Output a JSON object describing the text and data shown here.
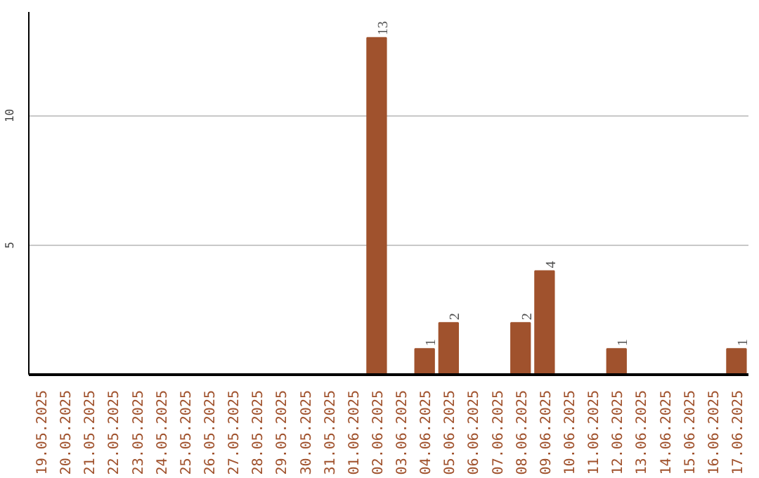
{
  "chart_data": {
    "type": "bar",
    "categories": [
      "19.05.2025",
      "20.05.2025",
      "21.05.2025",
      "22.05.2025",
      "23.05.2025",
      "24.05.2025",
      "25.05.2025",
      "26.05.2025",
      "27.05.2025",
      "28.05.2025",
      "29.05.2025",
      "30.05.2025",
      "31.05.2025",
      "01.06.2025",
      "02.06.2025",
      "03.06.2025",
      "04.06.2025",
      "05.06.2025",
      "06.06.2025",
      "07.06.2025",
      "08.06.2025",
      "09.06.2025",
      "10.06.2025",
      "11.06.2025",
      "12.06.2025",
      "13.06.2025",
      "14.06.2025",
      "15.06.2025",
      "16.06.2025",
      "17.06.2025"
    ],
    "values": [
      0,
      0,
      0,
      0,
      0,
      0,
      0,
      0,
      0,
      0,
      0,
      0,
      0,
      0,
      13,
      0,
      1,
      2,
      0,
      0,
      2,
      4,
      0,
      0,
      1,
      0,
      0,
      0,
      0,
      1
    ],
    "value_labels": [
      null,
      null,
      null,
      null,
      null,
      null,
      null,
      null,
      null,
      null,
      null,
      null,
      null,
      null,
      "13",
      null,
      "1",
      "2",
      null,
      null,
      "2",
      "4",
      null,
      null,
      "1",
      null,
      null,
      null,
      null,
      "1"
    ],
    "color": "#a0522d",
    "ylim": [
      0,
      14
    ],
    "yticks": [
      5,
      10
    ],
    "grid": "y"
  }
}
